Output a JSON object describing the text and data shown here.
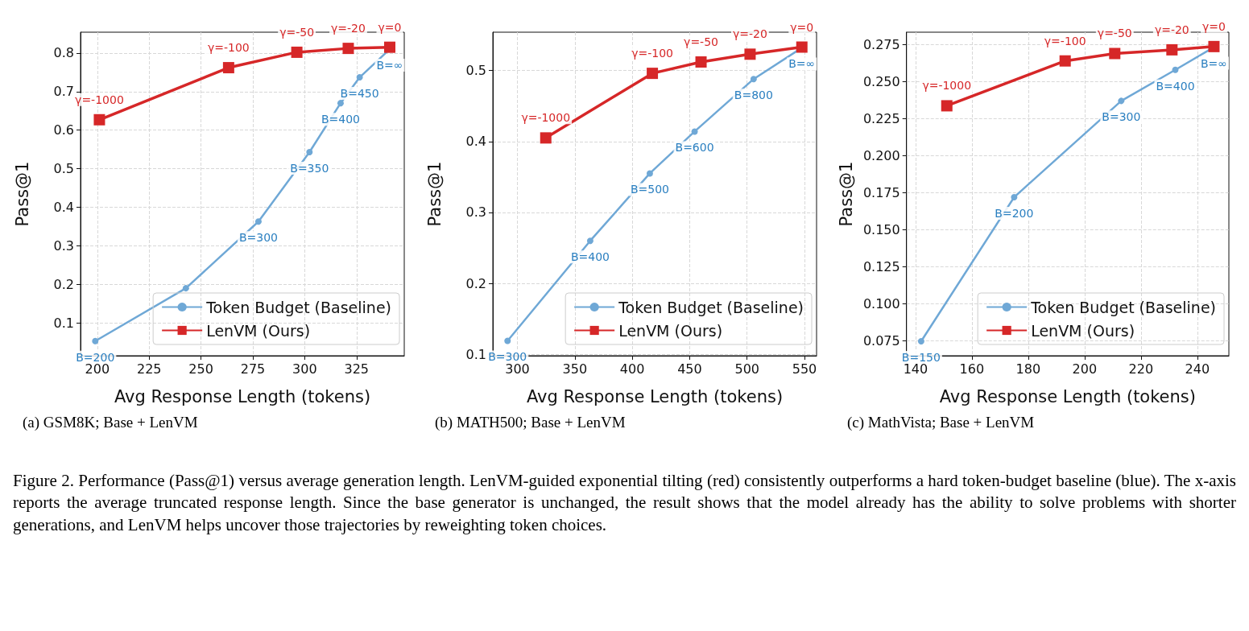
{
  "chart_data": [
    {
      "type": "line",
      "xlabel": "Avg Response Length (tokens)",
      "ylabel": "Pass@1",
      "annotations": [
        "(a) GSM8K; Base + LenVM",
        "Figure 2. Performance (Pass@1) versus average generation length. LenVM-guided exponential tilting (red) consistently outperforms a hard token-budget baseline (blue). The x-axis reports the average truncated response length. Since the base generator is unchanged, the result shows that the model already has the ability to solve problems with shorter generations, and LenVM helps uncover those trajectories by reweighting token choices.",
        {
          "text": "B=200",
          "x": 199,
          "y": 0.053
        },
        {
          "text": "B=300",
          "x": 277.7,
          "y": 0.363
        },
        {
          "text": "B=350",
          "x": 302.3,
          "y": 0.543
        },
        {
          "text": "B=400",
          "x": 317.3,
          "y": 0.67
        },
        {
          "text": "B=450",
          "x": 326.5,
          "y": 0.737
        },
        {
          "text": "B=∞",
          "x": 341,
          "y": 0.81
        },
        {
          "text": "γ=-1000",
          "x": 201,
          "y": 0.627
        },
        {
          "text": "γ=-100",
          "x": 263.3,
          "y": 0.762
        },
        {
          "text": "γ=-50",
          "x": 296.2,
          "y": 0.802
        },
        {
          "text": "γ=-20",
          "x": 321,
          "y": 0.812
        },
        {
          "text": "γ=0",
          "x": 341,
          "y": 0.815
        }
      ],
      "xlim": [
        191.9,
        348
      ],
      "xticks": [
        200,
        225,
        250,
        275,
        300,
        325
      ],
      "ylim": [
        0.015,
        0.854
      ],
      "yticks": [
        0.1,
        0.2,
        0.3,
        0.4,
        0.5,
        0.6,
        0.7,
        0.8
      ],
      "grid": true,
      "legend": "bottom right",
      "series": [
        {
          "name": "Token Budget (Baseline)",
          "color": "#6fa8d6",
          "marker": "circle",
          "x": [
            199,
            242.7,
            277.7,
            302.3,
            317.3,
            326.5,
            341
          ],
          "values": [
            0.053,
            0.19,
            0.363,
            0.543,
            0.67,
            0.737,
            0.81
          ]
        },
        {
          "name": "LenVM (Ours)",
          "color": "#d62728",
          "marker": "square",
          "x": [
            201,
            263.3,
            296.2,
            321,
            341
          ],
          "values": [
            0.627,
            0.762,
            0.802,
            0.812,
            0.815
          ]
        }
      ]
    },
    {
      "type": "line",
      "xlabel": "Avg Response Length (tokens)",
      "ylabel": "Pass@1",
      "annotations": [
        "(b) MATH500; Base + LenVM",
        {
          "text": "B=300",
          "x": 291.4,
          "y": 0.119
        },
        {
          "text": "B=400",
          "x": 363.4,
          "y": 0.26
        },
        {
          "text": "B=500",
          "x": 415.3,
          "y": 0.355
        },
        {
          "text": "B=600",
          "x": 454.3,
          "y": 0.414
        },
        {
          "text": "B=800",
          "x": 505.7,
          "y": 0.488
        },
        {
          "text": "B=∞",
          "x": 547.7,
          "y": 0.532
        },
        {
          "text": "γ=-1000",
          "x": 324.7,
          "y": 0.405
        },
        {
          "text": "γ=-100",
          "x": 417.5,
          "y": 0.496
        },
        {
          "text": "γ=-50",
          "x": 459.9,
          "y": 0.512
        },
        {
          "text": "γ=-20",
          "x": 502.6,
          "y": 0.523
        },
        {
          "text": "γ=0",
          "x": 547.7,
          "y": 0.533
        }
      ],
      "xlim": [
        278.6,
        560.5
      ],
      "xticks": [
        300,
        350,
        400,
        450,
        500,
        550
      ],
      "ylim": [
        0.098,
        0.554
      ],
      "yticks": [
        0.1,
        0.2,
        0.3,
        0.4,
        0.5
      ],
      "grid": true,
      "legend": "bottom right",
      "series": [
        {
          "name": "Token Budget (Baseline)",
          "color": "#6fa8d6",
          "marker": "circle",
          "x": [
            291.4,
            363.4,
            415.3,
            454.3,
            505.7,
            547.7
          ],
          "values": [
            0.119,
            0.26,
            0.355,
            0.414,
            0.488,
            0.532
          ]
        },
        {
          "name": "LenVM (Ours)",
          "color": "#d62728",
          "marker": "square",
          "x": [
            324.7,
            417.5,
            459.9,
            502.6,
            547.7
          ],
          "values": [
            0.405,
            0.496,
            0.512,
            0.523,
            0.533
          ]
        }
      ]
    },
    {
      "type": "line",
      "xlabel": "Avg Response Length (tokens)",
      "ylabel": "Pass@1",
      "annotations": [
        "(c) MathVista; Base + LenVM",
        {
          "text": "B=150",
          "x": 142,
          "y": 0.0747
        },
        {
          "text": "B=200",
          "x": 175,
          "y": 0.172
        },
        {
          "text": "B=300",
          "x": 213,
          "y": 0.237
        },
        {
          "text": "B=400",
          "x": 232.2,
          "y": 0.258
        },
        {
          "text": "B=∞",
          "x": 245.9,
          "y": 0.2733
        },
        {
          "text": "γ=-1000",
          "x": 151.1,
          "y": 0.2337
        },
        {
          "text": "γ=-100",
          "x": 193.1,
          "y": 0.264
        },
        {
          "text": "γ=-50",
          "x": 210.7,
          "y": 0.269
        },
        {
          "text": "γ=-20",
          "x": 231,
          "y": 0.2715
        },
        {
          "text": "γ=0",
          "x": 245.9,
          "y": 0.2737
        }
      ],
      "xlim": [
        136.8,
        251.2
      ],
      "xticks": [
        140,
        160,
        180,
        200,
        220,
        240
      ],
      "ylim": [
        0.0649,
        0.2834
      ],
      "yticks": [
        {
          "value": 0.075,
          "label": "0.075"
        },
        {
          "value": 0.1,
          "label": "0.100"
        },
        {
          "value": 0.125,
          "label": "0.125"
        },
        {
          "value": 0.15,
          "label": "0.150"
        },
        {
          "value": 0.175,
          "label": "0.175"
        },
        {
          "value": 0.2,
          "label": "0.200"
        },
        {
          "value": 0.225,
          "label": "0.225"
        },
        {
          "value": 0.25,
          "label": "0.250"
        },
        {
          "value": 0.275,
          "label": "0.275"
        }
      ],
      "grid": true,
      "legend": "bottom right",
      "series": [
        {
          "name": "Token Budget (Baseline)",
          "color": "#6fa8d6",
          "marker": "circle",
          "x": [
            142,
            175,
            213,
            232.2,
            245.9
          ],
          "values": [
            0.0747,
            0.172,
            0.237,
            0.258,
            0.2733
          ]
        },
        {
          "name": "LenVM (Ours)",
          "color": "#d62728",
          "marker": "square",
          "x": [
            151.1,
            193.1,
            210.7,
            231,
            245.9
          ],
          "values": [
            0.2337,
            0.264,
            0.269,
            0.2715,
            0.2737
          ]
        }
      ]
    }
  ]
}
